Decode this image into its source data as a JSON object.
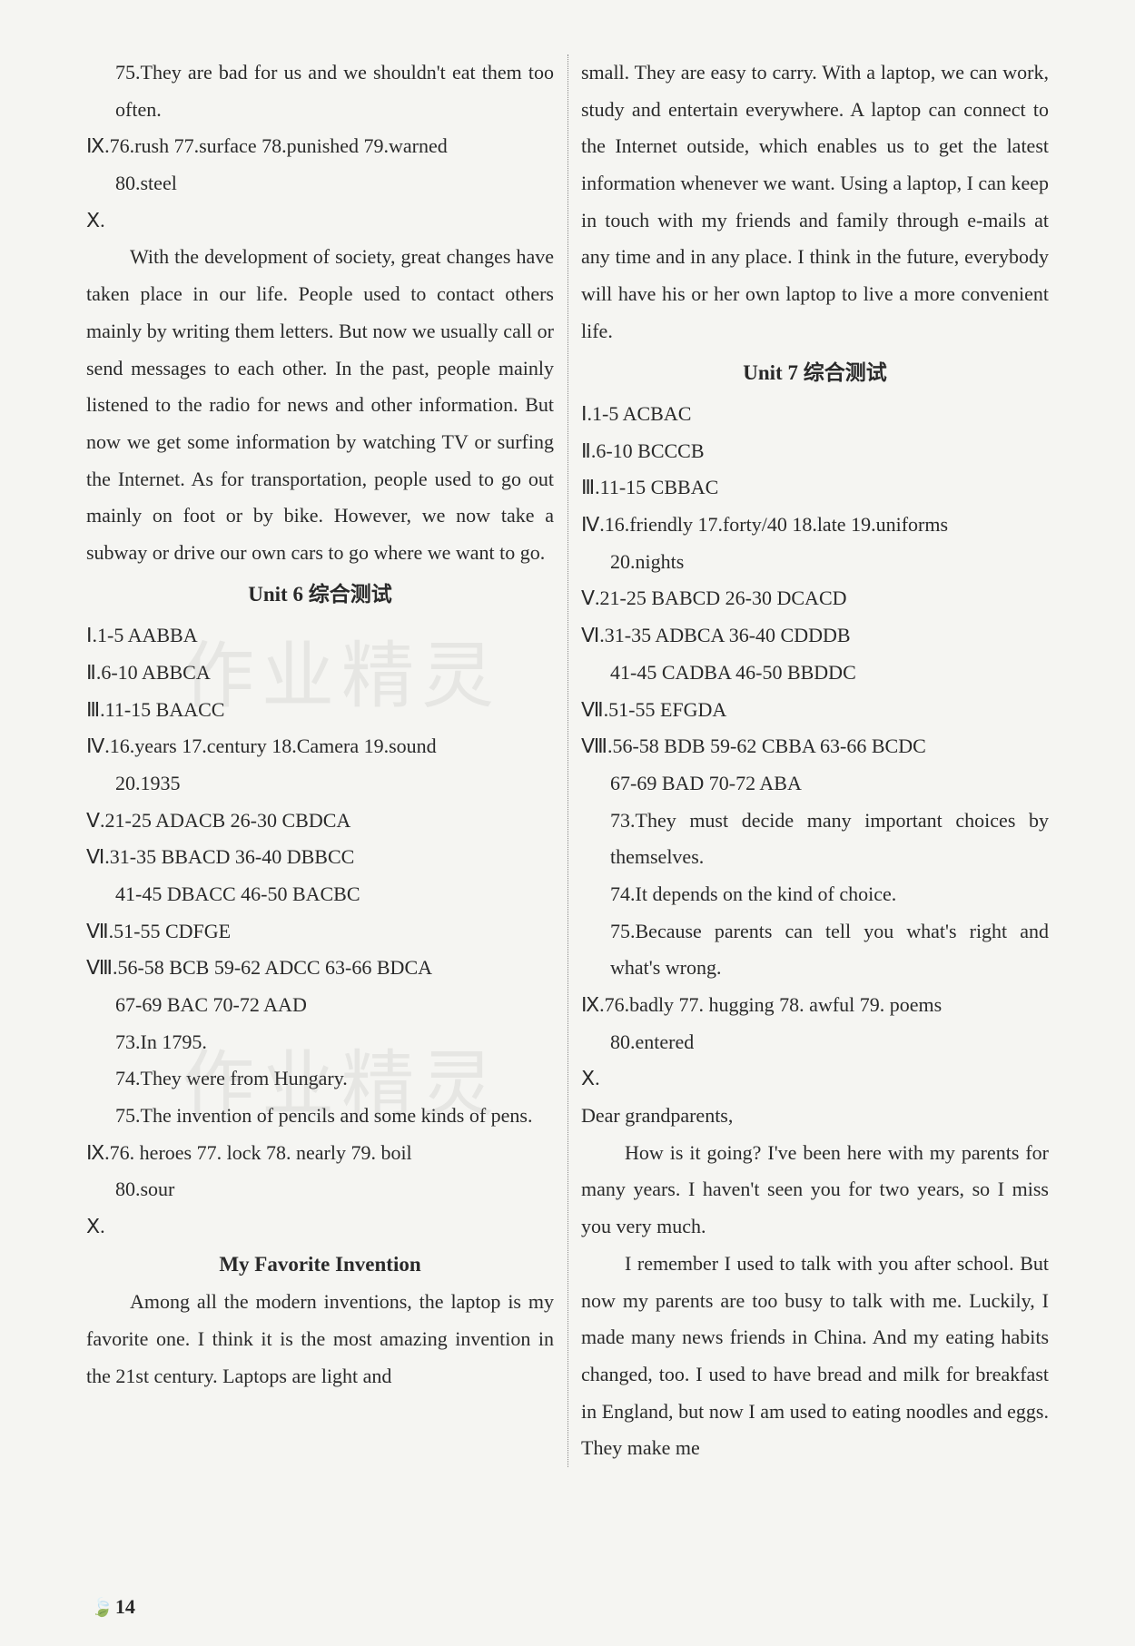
{
  "page_number": "14",
  "background_color": "#f5f5f2",
  "text_color": "#2a2a2a",
  "font_size_body": 22,
  "font_size_title": 23,
  "watermark_text": "作业精灵",
  "col_left": {
    "q75": "75.They are bad for us and we shouldn't eat them too often.",
    "ix_line1": "Ⅸ.76.rush  77.surface  78.punished  79.warned",
    "ix_line2": "80.steel",
    "x_label": "Ⅹ.",
    "x_paragraph": "With the development of society, great changes have taken place in our life. People used to contact others mainly by writing them letters. But now we usually call or send messages to each other. In the past, people mainly listened to the radio for news and other information. But now we get some information by watching TV or surfing the Internet. As for transportation, people used to go out mainly on foot or by bike. However, we now take a subway or drive our own cars to go where we want to go.",
    "unit6_title": "Unit 6 综合测试",
    "u6_i": "Ⅰ.1-5 AABBA",
    "u6_ii": "Ⅱ.6-10 ABBCA",
    "u6_iii": "Ⅲ.11-15 BAACC",
    "u6_iv_1": "Ⅳ.16.years  17.century  18.Camera  19.sound",
    "u6_iv_2": "20.1935",
    "u6_v": "Ⅴ.21-25 ADACB  26-30 CBDCA",
    "u6_vi_1": "Ⅵ.31-35 BBACD  36-40 DBBCC",
    "u6_vi_2": "41-45 DBACC  46-50 BACBC",
    "u6_vii": "Ⅶ.51-55 CDFGE",
    "u6_viii_1": "Ⅷ.56-58 BCB  59-62 ADCC  63-66 BDCA",
    "u6_viii_2": "67-69 BAC  70-72 AAD",
    "u6_73": "73.In 1795.",
    "u6_74": "74.They were from Hungary.",
    "u6_75": "75.The invention of pencils and some kinds of pens.",
    "u6_ix_1": "Ⅸ.76. heroes   77. lock   78. nearly   79. boil",
    "u6_ix_2": "80.sour",
    "u6_x_label": "Ⅹ.",
    "u6_essay_title": "My Favorite Invention",
    "u6_essay_p1": "Among all the modern inventions, the laptop is my favorite one. I think it is the most amazing invention in the 21st century. Laptops are light and"
  },
  "col_right": {
    "u6_essay_p1_cont": "small. They are easy to carry. With a laptop, we can work, study and entertain everywhere. A laptop can connect to the Internet outside, which enables us to get the latest information whenever we want. Using a laptop, I can keep in touch with my friends and family through e-mails at any time and in any place. I think in the future, everybody will have his or her own laptop to live a more convenient life.",
    "unit7_title": "Unit 7 综合测试",
    "u7_i": "Ⅰ.1-5 ACBAC",
    "u7_ii": "Ⅱ.6-10 BCCCB",
    "u7_iii": "Ⅲ.11-15 CBBAC",
    "u7_iv_1": "Ⅳ.16.friendly  17.forty/40  18.late  19.uniforms",
    "u7_iv_2": "20.nights",
    "u7_v": "Ⅴ.21-25 BABCD  26-30 DCACD",
    "u7_vi_1": "Ⅵ.31-35 ADBCA  36-40 CDDDB",
    "u7_vi_2": "41-45 CADBA  46-50 BBDDC",
    "u7_vii": "Ⅶ.51-55 EFGDA",
    "u7_viii_1": "Ⅷ.56-58 BDB  59-62 CBBA  63-66 BCDC",
    "u7_viii_2": "67-69 BAD  70-72 ABA",
    "u7_73": "73.They must decide many important choices by themselves.",
    "u7_74": "74.It depends on the kind of choice.",
    "u7_75": "75.Because parents can tell you what's right and what's wrong.",
    "u7_ix_1": "Ⅸ.76.badly  77. hugging  78. awful  79. poems",
    "u7_ix_2": "80.entered",
    "u7_x_label": "Ⅹ.",
    "u7_letter_greeting": "Dear grandparents,",
    "u7_letter_p1": "How is it going? I've been here with my parents for many years. I haven't seen you for two years, so I miss you very much.",
    "u7_letter_p2": "I remember I used to talk with you after school. But now my parents are too busy to talk with me. Luckily, I made many news friends in China. And my eating habits changed, too. I used to have bread and milk for breakfast in England, but now I am used to eating noodles and eggs. They make me"
  }
}
